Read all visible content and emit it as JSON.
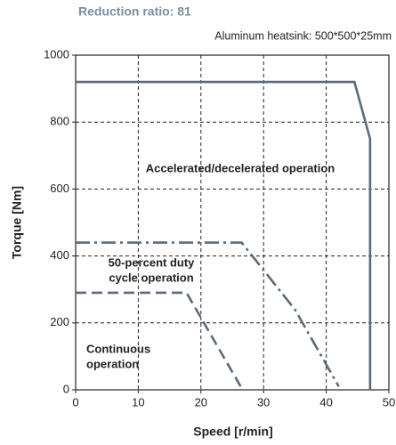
{
  "chart_data": {
    "type": "line",
    "title": "Reduction ratio: 81",
    "subtitle": "Aluminum heatsink: 500*500*25mm",
    "x_label": "Speed [r/min]",
    "y_label": "Torque [Nm]",
    "xlim": [
      0,
      50
    ],
    "ylim": [
      0,
      1000
    ],
    "xticks": [
      0,
      10,
      20,
      30,
      40,
      50
    ],
    "yticks": [
      0,
      200,
      400,
      600,
      800,
      1000
    ],
    "grid": true,
    "series": [
      {
        "label": [
          "Accelerated/decelerated operation"
        ],
        "color": "#5b6b7b",
        "dash": "solid",
        "x": [
          0,
          44.5,
          47,
          47
        ],
        "values": [
          920,
          920,
          750,
          0
        ]
      },
      {
        "label": [
          "50-percent duty",
          "cycle operation"
        ],
        "color": "#5b6b7b",
        "dash": "dashdot",
        "x": [
          0,
          26.5,
          35,
          42
        ],
        "values": [
          440,
          440,
          240,
          10
        ]
      },
      {
        "label": [
          "Continuous",
          "operation"
        ],
        "color": "#5b6b7b",
        "dash": "dashed",
        "x": [
          0,
          17.7,
          26.5
        ],
        "values": [
          290,
          290,
          5
        ]
      }
    ]
  }
}
